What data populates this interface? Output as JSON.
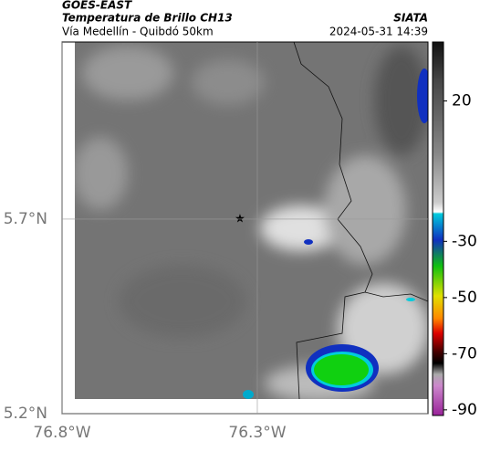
{
  "header": {
    "satellite": "GOES-EAST",
    "product": "Temperatura de Brillo CH13",
    "region": "Vía Medellín - Quibdó 50km",
    "source": "SIATA",
    "datetime": "2024-05-31 14:39"
  },
  "map": {
    "xlim": [
      -76.8,
      -75.863
    ],
    "ylim": [
      5.2,
      6.155
    ],
    "xticks": [
      {
        "value": -76.8,
        "label": "76.8°W"
      },
      {
        "value": -76.3,
        "label": "76.3°W"
      }
    ],
    "yticks": [
      {
        "value": 5.2,
        "label": "5.2°N"
      },
      {
        "value": 5.7,
        "label": "5.7°N"
      }
    ]
  },
  "colorbar": {
    "lim": [
      -92,
      41
    ],
    "ticks": [
      20,
      -30,
      -50,
      -70,
      -90
    ]
  }
}
